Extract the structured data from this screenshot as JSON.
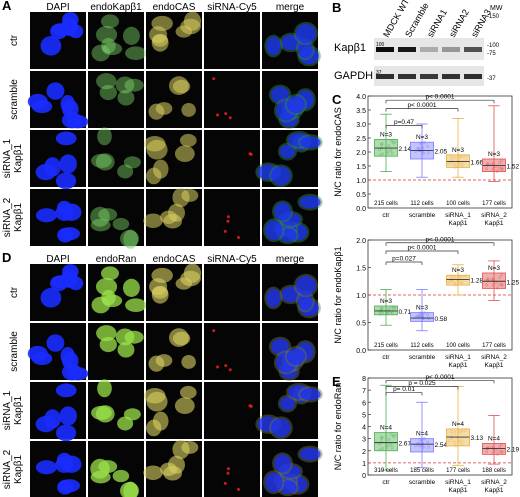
{
  "panels": {
    "A": "A",
    "B": "B",
    "C": "C",
    "D": "D",
    "E": "E"
  },
  "panelA": {
    "columns": [
      "DAPI",
      "endoKapβ1",
      "endoCAS",
      "siRNA-Cy5",
      "merge"
    ],
    "rows": [
      {
        "l1": "ctr",
        "l2": ""
      },
      {
        "l1": "scramble",
        "l2": ""
      },
      {
        "l1": "siRNA_1",
        "l2": "Kapβ1"
      },
      {
        "l1": "siRNA_2",
        "l2": "Kapβ1"
      }
    ]
  },
  "panelD": {
    "columns": [
      "DAPI",
      "endoRan",
      "endoCAS",
      "siRNA-Cy5",
      "merge"
    ],
    "rows": [
      {
        "l1": "ctr",
        "l2": ""
      },
      {
        "l1": "scramble",
        "l2": ""
      },
      {
        "l1": "siRNA_1",
        "l2": "Kapβ1"
      },
      {
        "l1": "siRNA_2",
        "l2": "Kapβ1"
      }
    ]
  },
  "panelB": {
    "lanes": [
      "MDCK WT",
      "Scramble",
      "siRNA1",
      "siRNA2",
      "siRNA3"
    ],
    "blots": [
      "Kapβ1",
      "GAPDH"
    ],
    "mw_label": "MW",
    "markers_right": [
      "-150",
      "-100",
      "-75",
      "-37"
    ],
    "markers_left": [
      "100",
      "37"
    ],
    "kap_intensity": [
      0.95,
      0.9,
      0.25,
      0.35,
      0.65
    ],
    "gapdh_intensity": [
      0.8,
      0.78,
      0.75,
      0.78,
      0.8
    ]
  },
  "chart_data": [
    {
      "type": "box",
      "panel": "C",
      "ylabel": "N/C ratio for endoCAS",
      "ylim": [
        0.0,
        4.0
      ],
      "yticks": [
        "0.0",
        "0.5",
        "1.0",
        "1.5",
        "2.0",
        "2.5",
        "3.0",
        "3.5",
        "4.0"
      ],
      "categories": [
        "ctr",
        "scramble",
        "siRNA_1 Kapβ1",
        "siRNA_2 Kapβ1"
      ],
      "medians": [
        2.14,
        2.05,
        1.66,
        1.52
      ],
      "boxes": [
        [
          1.85,
          2.45
        ],
        [
          1.75,
          2.35
        ],
        [
          1.45,
          1.9
        ],
        [
          1.3,
          1.75
        ]
      ],
      "whiskers": [
        [
          1.3,
          3.35
        ],
        [
          1.1,
          3.0
        ],
        [
          1.1,
          3.2
        ],
        [
          0.95,
          3.65
        ]
      ],
      "n": [
        "N=3",
        "N=3",
        "N=3",
        "N=3"
      ],
      "counts": [
        "215 cells",
        "112 cells",
        "100 cells",
        "177 cells"
      ],
      "ref_line": 1.0,
      "brackets": [
        {
          "a": 0,
          "b": 1,
          "text": "p=0.47",
          "y": 2.95
        },
        {
          "a": 0,
          "b": 2,
          "text": "p< 0.0001",
          "y": 3.55
        },
        {
          "a": 0,
          "b": 3,
          "text": "p< 0.0001",
          "y": 3.85
        }
      ]
    },
    {
      "type": "box",
      "panel": "C2",
      "ylabel": "N/C ratio for endoKapβ1",
      "ylim": [
        0.0,
        2.0
      ],
      "yticks": [
        "0.0",
        "0.5",
        "1.0",
        "1.5",
        "2.0"
      ],
      "categories": [
        "ctr",
        "scramble",
        "siRNA_1 Kapβ1",
        "siRNA_2 Kapβ1"
      ],
      "medians": [
        0.71,
        0.58,
        1.28,
        1.25
      ],
      "boxes": [
        [
          0.64,
          0.8
        ],
        [
          0.52,
          0.68
        ],
        [
          1.18,
          1.36
        ],
        [
          1.12,
          1.4
        ]
      ],
      "whiskers": [
        [
          0.45,
          1.1
        ],
        [
          0.35,
          1.1
        ],
        [
          1.0,
          1.55
        ],
        [
          0.9,
          1.62
        ]
      ],
      "n": [
        "N=3",
        "N=3",
        "N=3",
        "N=3"
      ],
      "counts": [
        "215 cells",
        "112 cells",
        "100 cells",
        "177 cells"
      ],
      "ref_line": 1.0,
      "brackets": [
        {
          "a": 0,
          "b": 1,
          "text": "p=0.027",
          "y": 1.6
        },
        {
          "a": 0,
          "b": 2,
          "text": "p< 0.0001",
          "y": 1.8
        },
        {
          "a": 0,
          "b": 3,
          "text": "p< 0.0001",
          "y": 1.95
        }
      ]
    },
    {
      "type": "box",
      "panel": "E",
      "ylabel": "N/C ratio for endoRan",
      "ylim": [
        0,
        8
      ],
      "yticks": [
        "0",
        "1",
        "2",
        "3",
        "4",
        "5",
        "6",
        "7",
        "8"
      ],
      "categories": [
        "ctr",
        "scramble",
        "siRNA_1 Kapβ1",
        "siRNA_2 Kapβ1"
      ],
      "medians": [
        2.67,
        2.54,
        3.13,
        2.19
      ],
      "boxes": [
        [
          2.0,
          3.5
        ],
        [
          1.9,
          3.0
        ],
        [
          2.4,
          3.8
        ],
        [
          1.7,
          2.6
        ]
      ],
      "whiskers": [
        [
          0.4,
          7.4
        ],
        [
          0.6,
          6.0
        ],
        [
          0.8,
          7.3
        ],
        [
          0.9,
          4.9
        ]
      ],
      "n": [
        "N=4",
        "N=4",
        "N=4",
        "N=4"
      ],
      "counts": [
        "319 cells",
        "185 cells",
        "177 cells",
        "188 cells"
      ],
      "ref_line": 1.0,
      "brackets": [
        {
          "a": 0,
          "b": 1,
          "text": "p= 0.01",
          "y": 6.8
        },
        {
          "a": 0,
          "b": 2,
          "text": "p = 0.025",
          "y": 7.3
        },
        {
          "a": 0,
          "b": 3,
          "text": "p< 0.0001",
          "y": 7.8
        }
      ]
    }
  ],
  "colors": {
    "ctr": "#4caf50",
    "scramble": "#7b7bff",
    "siRNA_1": "#e8b040",
    "siRNA_2": "#e05050",
    "dapi": "#1a2cff",
    "kap": "#7fd86a",
    "cas": "#d8d060",
    "cy5": "#ff2020",
    "ran": "#9be24a"
  }
}
